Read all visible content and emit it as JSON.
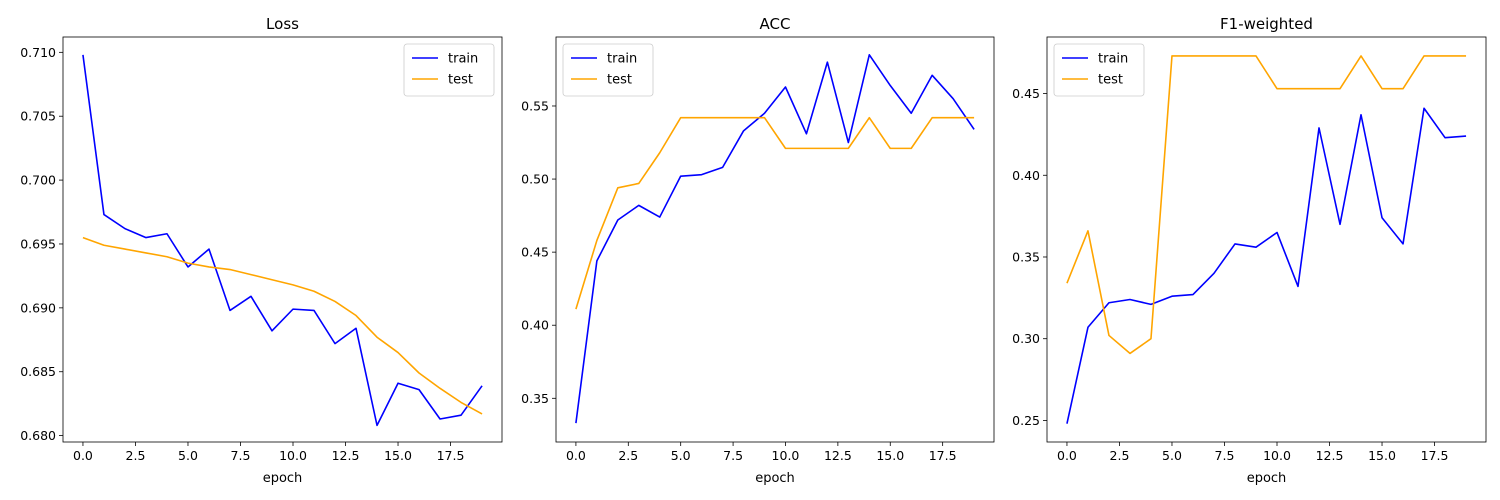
{
  "colors": {
    "train": "#0000ff",
    "test": "#ffa500"
  },
  "chart_data": [
    {
      "type": "line",
      "title": "Loss",
      "xlabel": "epoch",
      "ylabel": "",
      "xlim": [
        -0.95,
        19.95
      ],
      "ylim": [
        0.6795,
        0.7112
      ],
      "xticks": [
        0.0,
        2.5,
        5.0,
        7.5,
        10.0,
        12.5,
        15.0,
        17.5
      ],
      "xtick_labels": [
        "0.0",
        "2.5",
        "5.0",
        "7.5",
        "10.0",
        "12.5",
        "15.0",
        "17.5"
      ],
      "yticks": [
        0.68,
        0.685,
        0.69,
        0.695,
        0.7,
        0.705,
        0.71
      ],
      "ytick_labels": [
        "0.680",
        "0.685",
        "0.690",
        "0.695",
        "0.700",
        "0.705",
        "0.710"
      ],
      "legend_position": "top-right",
      "x": [
        0,
        1,
        2,
        3,
        4,
        5,
        6,
        7,
        8,
        9,
        10,
        11,
        12,
        13,
        14,
        15,
        16,
        17,
        18,
        19
      ],
      "series": [
        {
          "name": "train",
          "color": "#0000ff",
          "values": [
            0.7098,
            0.6973,
            0.6962,
            0.6955,
            0.6958,
            0.6932,
            0.6946,
            0.6898,
            0.6909,
            0.6882,
            0.6899,
            0.6898,
            0.6872,
            0.6884,
            0.6808,
            0.6841,
            0.6836,
            0.6813,
            0.6816,
            0.6839
          ]
        },
        {
          "name": "test",
          "color": "#ffa500",
          "values": [
            0.6955,
            0.6949,
            0.6946,
            0.6943,
            0.694,
            0.6935,
            0.6932,
            0.693,
            0.6926,
            0.6922,
            0.6918,
            0.6913,
            0.6905,
            0.6894,
            0.6877,
            0.6865,
            0.6849,
            0.6837,
            0.6826,
            0.6817
          ]
        }
      ]
    },
    {
      "type": "line",
      "title": "ACC",
      "xlabel": "epoch",
      "ylabel": "",
      "xlim": [
        -0.95,
        19.95
      ],
      "ylim": [
        0.3201,
        0.5972
      ],
      "xticks": [
        0.0,
        2.5,
        5.0,
        7.5,
        10.0,
        12.5,
        15.0,
        17.5
      ],
      "xtick_labels": [
        "0.0",
        "2.5",
        "5.0",
        "7.5",
        "10.0",
        "12.5",
        "15.0",
        "17.5"
      ],
      "yticks": [
        0.35,
        0.4,
        0.45,
        0.5,
        0.55
      ],
      "ytick_labels": [
        "0.35",
        "0.40",
        "0.45",
        "0.50",
        "0.55"
      ],
      "legend_position": "top-left",
      "x": [
        0,
        1,
        2,
        3,
        4,
        5,
        6,
        7,
        8,
        9,
        10,
        11,
        12,
        13,
        14,
        15,
        16,
        17,
        18,
        19
      ],
      "series": [
        {
          "name": "train",
          "color": "#0000ff",
          "values": [
            0.333,
            0.444,
            0.472,
            0.482,
            0.474,
            0.502,
            0.503,
            0.508,
            0.533,
            0.545,
            0.563,
            0.531,
            0.58,
            0.525,
            0.585,
            0.564,
            0.545,
            0.571,
            0.555,
            0.534
          ]
        },
        {
          "name": "test",
          "color": "#ffa500",
          "values": [
            0.411,
            0.458,
            0.494,
            0.497,
            0.518,
            0.542,
            0.542,
            0.542,
            0.542,
            0.542,
            0.521,
            0.521,
            0.521,
            0.521,
            0.542,
            0.521,
            0.521,
            0.542,
            0.542,
            0.542
          ]
        }
      ]
    },
    {
      "type": "line",
      "title": "F1-weighted",
      "xlabel": "epoch",
      "ylabel": "",
      "xlim": [
        -0.95,
        19.95
      ],
      "ylim": [
        0.2368,
        0.4846
      ],
      "xticks": [
        0.0,
        2.5,
        5.0,
        7.5,
        10.0,
        12.5,
        15.0,
        17.5
      ],
      "xtick_labels": [
        "0.0",
        "2.5",
        "5.0",
        "7.5",
        "10.0",
        "12.5",
        "15.0",
        "17.5"
      ],
      "yticks": [
        0.25,
        0.3,
        0.35,
        0.4,
        0.45
      ],
      "ytick_labels": [
        "0.25",
        "0.30",
        "0.35",
        "0.40",
        "0.45"
      ],
      "legend_position": "top-left",
      "x": [
        0,
        1,
        2,
        3,
        4,
        5,
        6,
        7,
        8,
        9,
        10,
        11,
        12,
        13,
        14,
        15,
        16,
        17,
        18,
        19
      ],
      "series": [
        {
          "name": "train",
          "color": "#0000ff",
          "values": [
            0.248,
            0.307,
            0.322,
            0.324,
            0.321,
            0.326,
            0.327,
            0.34,
            0.358,
            0.356,
            0.365,
            0.332,
            0.429,
            0.37,
            0.437,
            0.374,
            0.358,
            0.441,
            0.423,
            0.424
          ]
        },
        {
          "name": "test",
          "color": "#ffa500",
          "values": [
            0.334,
            0.366,
            0.302,
            0.291,
            0.3,
            0.473,
            0.473,
            0.473,
            0.473,
            0.473,
            0.453,
            0.453,
            0.453,
            0.453,
            0.473,
            0.453,
            0.453,
            0.473,
            0.473,
            0.473
          ]
        }
      ]
    }
  ]
}
